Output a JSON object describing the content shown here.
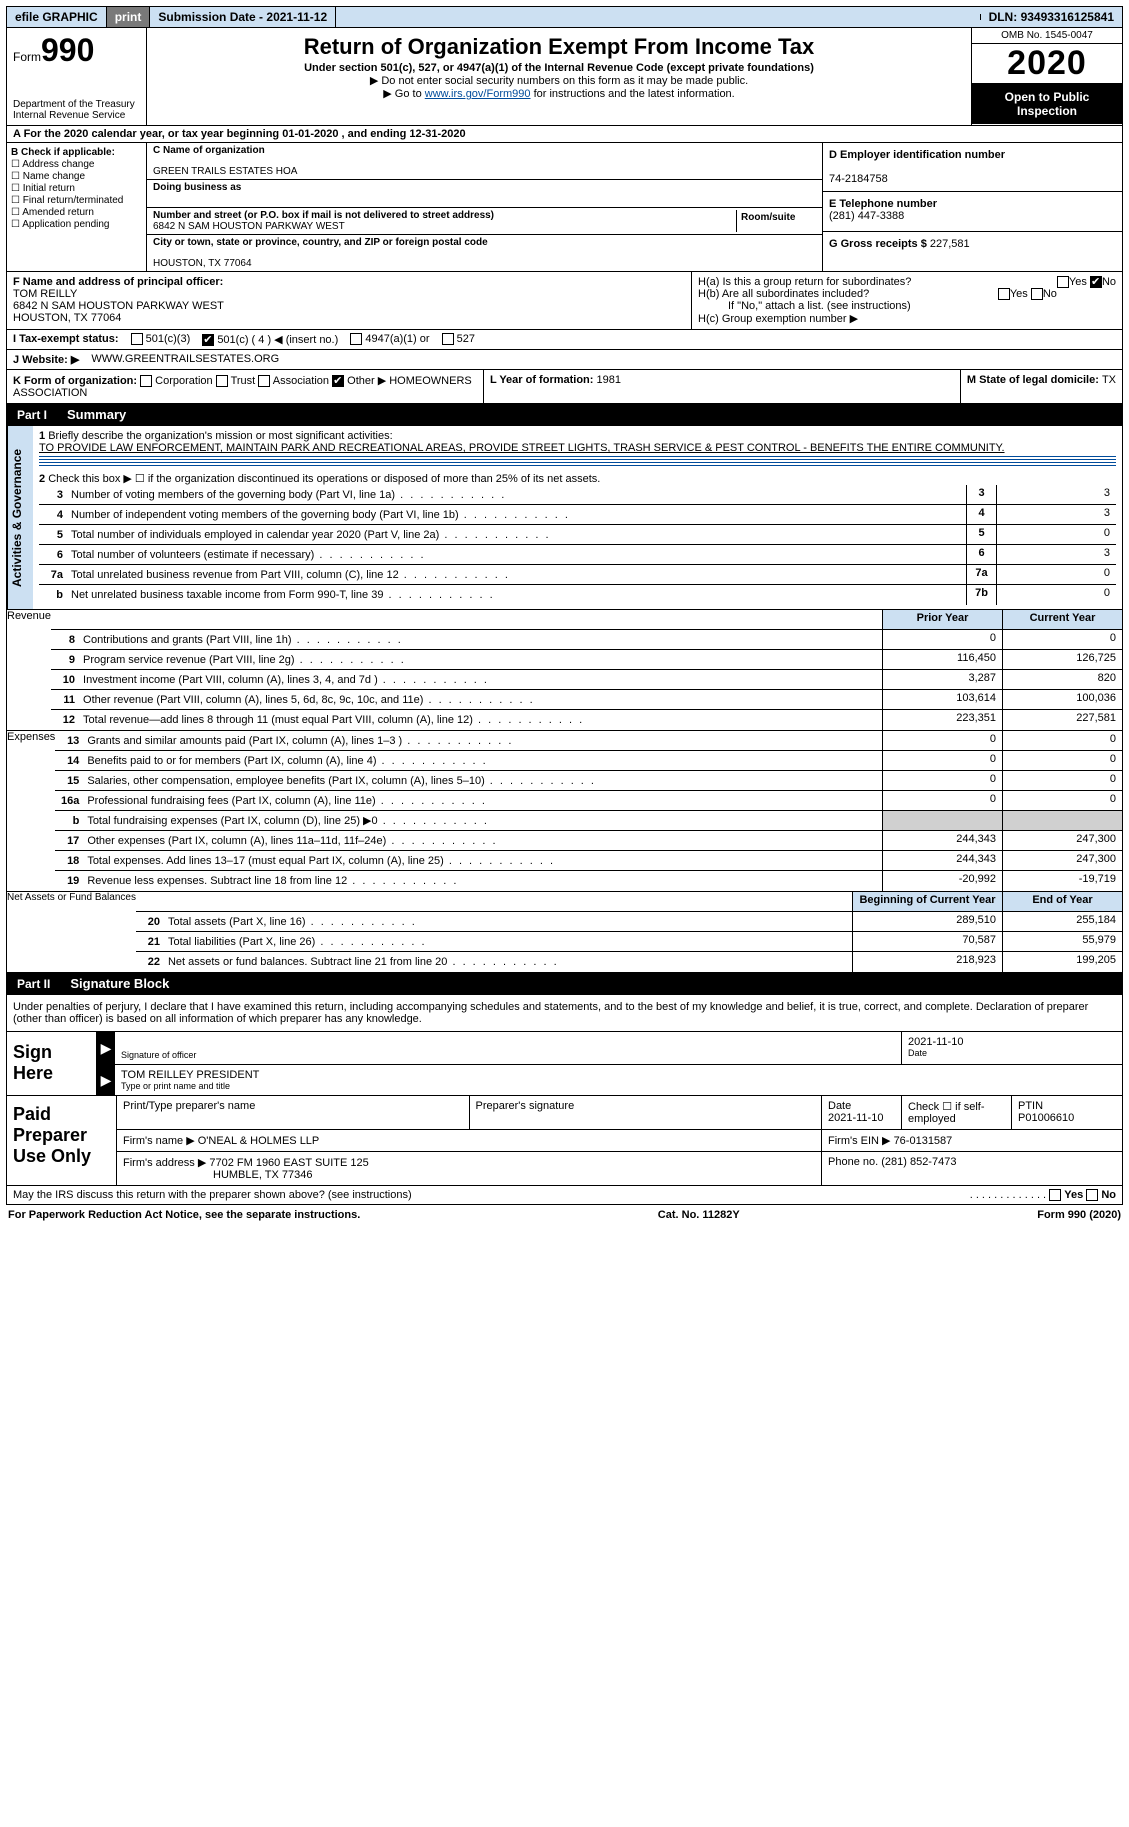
{
  "topbar": {
    "efile": "efile GRAPHIC",
    "print": "print",
    "submission_label": "Submission Date - ",
    "submission_date": "2021-11-12",
    "dln_label": "DLN: ",
    "dln": "93493316125841"
  },
  "header": {
    "form_label": "Form",
    "form_no": "990",
    "dept1": "Department of the Treasury",
    "dept2": "Internal Revenue Service",
    "title": "Return of Organization Exempt From Income Tax",
    "sub": "Under section 501(c), 527, or 4947(a)(1) of the Internal Revenue Code (except private foundations)",
    "note1": "Do not enter social security numbers on this form as it may be made public.",
    "note2_pre": "Go to ",
    "note2_link": "www.irs.gov/Form990",
    "note2_post": " for instructions and the latest information.",
    "omb": "OMB No. 1545-0047",
    "year": "2020",
    "open": "Open to Public Inspection"
  },
  "rowA": {
    "prefix": "A For the 2020 calendar year, or tax year beginning ",
    "begin": "01-01-2020",
    "mid": " , and ending ",
    "end": "12-31-2020"
  },
  "boxB": {
    "title": "B Check if applicable:",
    "opts": [
      "Address change",
      "Name change",
      "Initial return",
      "Final return/terminated",
      "Amended return",
      "Application pending"
    ]
  },
  "boxC": {
    "name_lbl": "C Name of organization",
    "name": "GREEN TRAILS ESTATES HOA",
    "dba_lbl": "Doing business as",
    "addr_lbl": "Number and street (or P.O. box if mail is not delivered to street address)",
    "addr": "6842 N SAM HOUSTON PARKWAY WEST",
    "room_lbl": "Room/suite",
    "city_lbl": "City or town, state or province, country, and ZIP or foreign postal code",
    "city": "HOUSTON, TX  77064"
  },
  "boxD": {
    "lbl": "D Employer identification number",
    "val": "74-2184758"
  },
  "boxE": {
    "lbl": "E Telephone number",
    "val": "(281) 447-3388"
  },
  "boxG": {
    "lbl": "G Gross receipts $ ",
    "val": "227,581"
  },
  "boxF": {
    "lbl": "F Name and address of principal officer:",
    "name": "TOM REILLY",
    "addr1": "6842 N SAM HOUSTON PARKWAY WEST",
    "addr2": "HOUSTON, TX  77064"
  },
  "boxH": {
    "a": "H(a)  Is this a group return for subordinates?",
    "b": "H(b)  Are all subordinates included?",
    "note": "If \"No,\" attach a list. (see instructions)",
    "c": "H(c)  Group exemption number ▶"
  },
  "boxI": {
    "lbl": "I   Tax-exempt status:",
    "o1": "501(c)(3)",
    "o2pre": "501(c) ( ",
    "o2val": "4",
    "o2post": " ) ◀ (insert no.)",
    "o3": "4947(a)(1) or",
    "o4": "527"
  },
  "boxJ": {
    "lbl": "J   Website: ▶ ",
    "val": "WWW.GREENTRAILSESTATES.ORG"
  },
  "boxK": {
    "lbl": "K Form of organization:",
    "o1": "Corporation",
    "o2": "Trust",
    "o3": "Association",
    "o4": "Other ▶",
    "other": "HOMEOWNERS ASSOCIATION"
  },
  "boxL": {
    "lbl": "L Year of formation: ",
    "val": "1981"
  },
  "boxM": {
    "lbl": "M State of legal domicile: ",
    "val": "TX"
  },
  "partI": {
    "tag": "Part I",
    "title": "Summary"
  },
  "summary": {
    "l1_lbl": "Briefly describe the organization's mission or most significant activities:",
    "l1_val": "TO PROVIDE LAW ENFORCEMENT, MAINTAIN PARK AND RECREATIONAL AREAS, PROVIDE STREET LIGHTS, TRASH SERVICE & PEST CONTROL - BENEFITS THE ENTIRE COMMUNITY.",
    "l2": "Check this box ▶ ☐  if the organization discontinued its operations or disposed of more than 25% of its net assets.",
    "lines_gov": [
      {
        "n": "3",
        "t": "Number of voting members of the governing body (Part VI, line 1a)",
        "box": "3",
        "v": "3"
      },
      {
        "n": "4",
        "t": "Number of independent voting members of the governing body (Part VI, line 1b)",
        "box": "4",
        "v": "3"
      },
      {
        "n": "5",
        "t": "Total number of individuals employed in calendar year 2020 (Part V, line 2a)",
        "box": "5",
        "v": "0"
      },
      {
        "n": "6",
        "t": "Total number of volunteers (estimate if necessary)",
        "box": "6",
        "v": "3"
      },
      {
        "n": "7a",
        "t": "Total unrelated business revenue from Part VIII, column (C), line 12",
        "box": "7a",
        "v": "0"
      },
      {
        "n": "b",
        "t": "Net unrelated business taxable income from Form 990-T, line 39",
        "box": "7b",
        "v": "0"
      }
    ],
    "col_prior": "Prior Year",
    "col_current": "Current Year",
    "rev": [
      {
        "n": "8",
        "t": "Contributions and grants (Part VIII, line 1h)",
        "p": "0",
        "c": "0"
      },
      {
        "n": "9",
        "t": "Program service revenue (Part VIII, line 2g)",
        "p": "116,450",
        "c": "126,725"
      },
      {
        "n": "10",
        "t": "Investment income (Part VIII, column (A), lines 3, 4, and 7d )",
        "p": "3,287",
        "c": "820"
      },
      {
        "n": "11",
        "t": "Other revenue (Part VIII, column (A), lines 5, 6d, 8c, 9c, 10c, and 11e)",
        "p": "103,614",
        "c": "100,036"
      },
      {
        "n": "12",
        "t": "Total revenue—add lines 8 through 11 (must equal Part VIII, column (A), line 12)",
        "p": "223,351",
        "c": "227,581"
      }
    ],
    "exp": [
      {
        "n": "13",
        "t": "Grants and similar amounts paid (Part IX, column (A), lines 1–3 )",
        "p": "0",
        "c": "0"
      },
      {
        "n": "14",
        "t": "Benefits paid to or for members (Part IX, column (A), line 4)",
        "p": "0",
        "c": "0"
      },
      {
        "n": "15",
        "t": "Salaries, other compensation, employee benefits (Part IX, column (A), lines 5–10)",
        "p": "0",
        "c": "0"
      },
      {
        "n": "16a",
        "t": "Professional fundraising fees (Part IX, column (A), line 11e)",
        "p": "0",
        "c": "0"
      },
      {
        "n": "b",
        "t": "Total fundraising expenses (Part IX, column (D), line 25) ▶0",
        "p": "",
        "c": "",
        "grey": true
      },
      {
        "n": "17",
        "t": "Other expenses (Part IX, column (A), lines 11a–11d, 11f–24e)",
        "p": "244,343",
        "c": "247,300"
      },
      {
        "n": "18",
        "t": "Total expenses. Add lines 13–17 (must equal Part IX, column (A), line 25)",
        "p": "244,343",
        "c": "247,300"
      },
      {
        "n": "19",
        "t": "Revenue less expenses. Subtract line 18 from line 12",
        "p": "-20,992",
        "c": "-19,719"
      }
    ],
    "col_beg": "Beginning of Current Year",
    "col_end": "End of Year",
    "net": [
      {
        "n": "20",
        "t": "Total assets (Part X, line 16)",
        "p": "289,510",
        "c": "255,184"
      },
      {
        "n": "21",
        "t": "Total liabilities (Part X, line 26)",
        "p": "70,587",
        "c": "55,979"
      },
      {
        "n": "22",
        "t": "Net assets or fund balances. Subtract line 21 from line 20",
        "p": "218,923",
        "c": "199,205"
      }
    ]
  },
  "partII": {
    "tag": "Part II",
    "title": "Signature Block"
  },
  "sig": {
    "decl": "Under penalties of perjury, I declare that I have examined this return, including accompanying schedules and statements, and to the best of my knowledge and belief, it is true, correct, and complete. Declaration of preparer (other than officer) is based on all information of which preparer has any knowledge.",
    "here": "Sign Here",
    "sig_officer": "Signature of officer",
    "date": "Date",
    "sig_date": "2021-11-10",
    "name": "TOM REILLEY PRESIDENT",
    "name_lbl": "Type or print name and title"
  },
  "paid": {
    "lab": "Paid Preparer Use Only",
    "h1": "Print/Type preparer's name",
    "h2": "Preparer's signature",
    "h3": "Date",
    "h3v": "2021-11-10",
    "h4": "Check ☐ if self-employed",
    "h5": "PTIN",
    "h5v": "P01006610",
    "firm_lbl": "Firm's name    ▶",
    "firm": "O'NEAL & HOLMES LLP",
    "ein_lbl": "Firm's EIN ▶",
    "ein": "76-0131587",
    "addr_lbl": "Firm's address ▶",
    "addr1": "7702 FM 1960 EAST SUITE 125",
    "addr2": "HUMBLE, TX  77346",
    "phone_lbl": "Phone no. ",
    "phone": "(281) 852-7473"
  },
  "discuss": "May the IRS discuss this return with the preparer shown above? (see instructions)",
  "footer": {
    "l": "For Paperwork Reduction Act Notice, see the separate instructions.",
    "m": "Cat. No. 11282Y",
    "r": "Form 990 (2020)"
  },
  "vtabs": {
    "gov": "Activities & Governance",
    "rev": "Revenue",
    "exp": "Expenses",
    "net": "Net Assets or Fund Balances"
  }
}
